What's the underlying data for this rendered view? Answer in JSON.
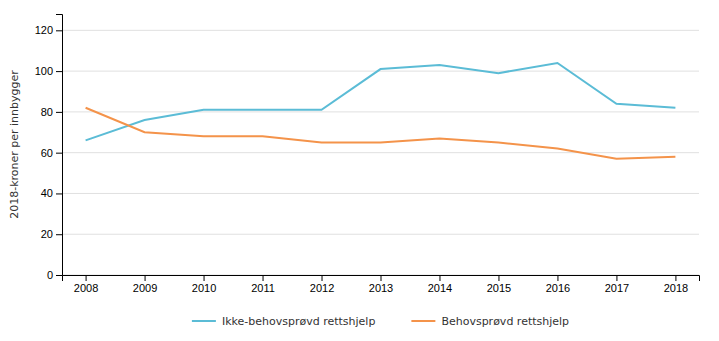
{
  "chart_data": {
    "type": "line",
    "ylabel": "2018-kroner per innbygger",
    "x": [
      2008,
      2009,
      2010,
      2011,
      2012,
      2013,
      2014,
      2015,
      2016,
      2017,
      2018
    ],
    "series": [
      {
        "name": "Ikke-behovsprøvd rettshjelp",
        "color": "#5BBCD6",
        "values": [
          66,
          76,
          81,
          81,
          81,
          101,
          103,
          99,
          104,
          84,
          82
        ]
      },
      {
        "name": "Behovsprøvd rettshjelp",
        "color": "#F4934A",
        "values": [
          82,
          70,
          68,
          68,
          65,
          65,
          67,
          65,
          62,
          57,
          58
        ]
      }
    ],
    "xlim": [
      2007.6,
      2018.4
    ],
    "xticks": [
      2008,
      2009,
      2010,
      2011,
      2012,
      2013,
      2014,
      2015,
      2016,
      2017,
      2018
    ],
    "ylim": [
      0,
      128
    ],
    "yticks": [
      0,
      20,
      40,
      60,
      80,
      100,
      120
    ],
    "grid": true,
    "legend": "bottom"
  }
}
